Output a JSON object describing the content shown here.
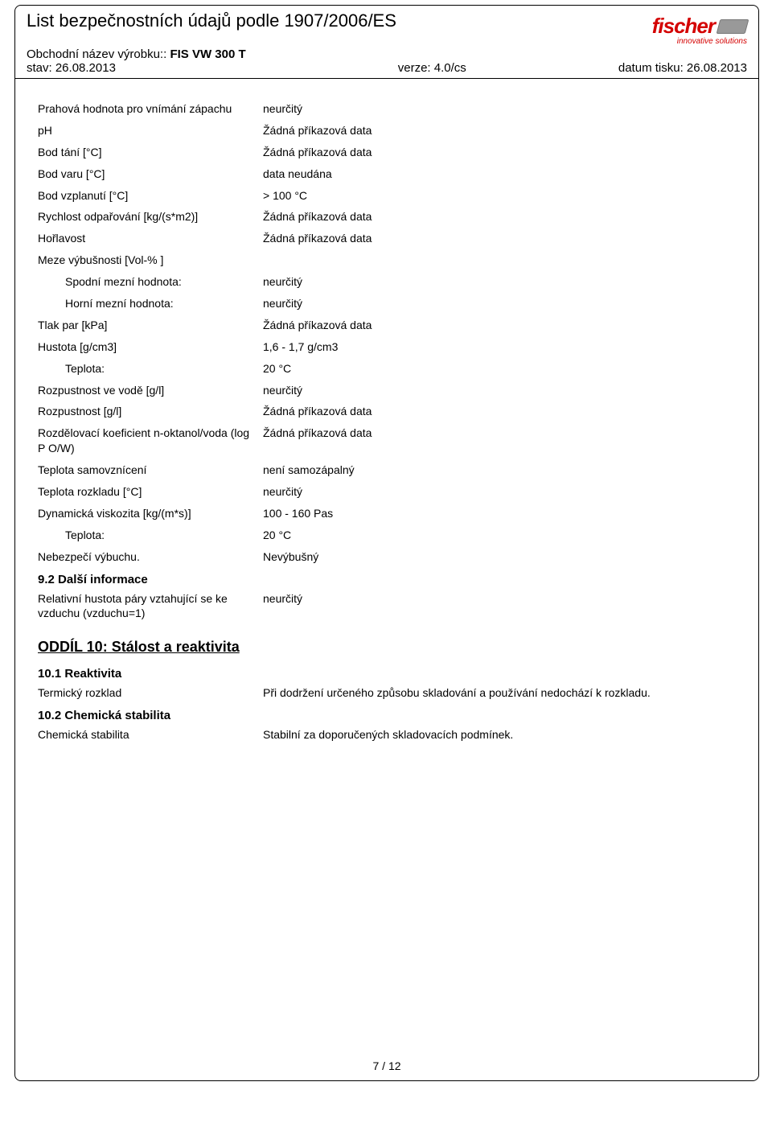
{
  "header": {
    "doc_title": "List bezpečnostních údajů podle 1907/2006/ES",
    "product_label": "Obchodní název výrobku:: ",
    "product_name": "FIS VW 300 T",
    "status": "stav: 26.08.2013",
    "version": "verze: 4.0/cs",
    "print_date": "datum tisku: 26.08.2013",
    "logo_text": "fischer",
    "logo_tagline": "innovative solutions"
  },
  "properties": [
    {
      "label": "Prahová hodnota pro vnímání zápachu",
      "value": "neurčitý",
      "indent": false,
      "tall": true
    },
    {
      "label": "pH",
      "value": "Žádná příkazová data",
      "indent": false
    },
    {
      "label": "Bod tání [°C]",
      "value": "Žádná příkazová data",
      "indent": false
    },
    {
      "label": "Bod varu [°C]",
      "value": "data neudána",
      "indent": false
    },
    {
      "label": "Bod vzplanutí [°C]",
      "value": "> 100 °C",
      "indent": false
    },
    {
      "label": "Rychlost odpařování [kg/(s*m2)]",
      "value": "Žádná příkazová data",
      "indent": false
    },
    {
      "label": "Hořlavost",
      "value": "Žádná příkazová data",
      "indent": false
    },
    {
      "label": "Meze výbušnosti [Vol-% ]",
      "value": "",
      "indent": false
    },
    {
      "label": "Spodní mezní hodnota:",
      "value": "neurčitý",
      "indent": true
    },
    {
      "label": "Horní mezní hodnota:",
      "value": "neurčitý",
      "indent": true
    },
    {
      "label": "Tlak par [kPa]",
      "value": "Žádná příkazová data",
      "indent": false
    },
    {
      "label": "Hustota [g/cm3]",
      "value": "1,6 - 1,7 g/cm3",
      "indent": false
    },
    {
      "label": "Teplota:",
      "value": "20 °C",
      "indent": true
    },
    {
      "label": "Rozpustnost ve vodě [g/l]",
      "value": "neurčitý",
      "indent": false
    },
    {
      "label": "Rozpustnost [g/l]",
      "value": "Žádná příkazová data",
      "indent": false
    },
    {
      "label": "Rozdělovací koeficient n-oktanol/voda (log P O/W)",
      "value": "Žádná příkazová data",
      "indent": false,
      "tall": true
    },
    {
      "label": "Teplota samovznícení",
      "value": "není samozápalný",
      "indent": false
    },
    {
      "label": "Teplota rozkladu [°C]",
      "value": "neurčitý",
      "indent": false
    },
    {
      "label": "Dynamická viskozita [kg/(m*s)]",
      "value": "100 - 160 Pas",
      "indent": false
    },
    {
      "label": "Teplota:",
      "value": "20 °C",
      "indent": true
    },
    {
      "label": "Nebezpečí výbuchu.",
      "value": "Nevýbušný",
      "indent": false
    }
  ],
  "section_9_2": {
    "heading": "9.2 Další informace",
    "rows": [
      {
        "label": "Relativní hustota páry vztahující se ke vzduchu (vzduchu=1)",
        "value": "neurčitý"
      }
    ]
  },
  "section_10": {
    "heading": "ODDÍL 10: Stálost a reaktivita",
    "sub1_heading": "10.1 Reaktivita",
    "sub1_rows": [
      {
        "label": "Termický rozklad",
        "value": "Při dodržení určeného způsobu skladování a používání nedochází k rozkladu."
      }
    ],
    "sub2_heading": "10.2 Chemická stabilita",
    "sub2_rows": [
      {
        "label": "Chemická stabilita",
        "value": "Stabilní za doporučených skladovacích podmínek."
      }
    ]
  },
  "footer": {
    "page": "7 / 12"
  }
}
